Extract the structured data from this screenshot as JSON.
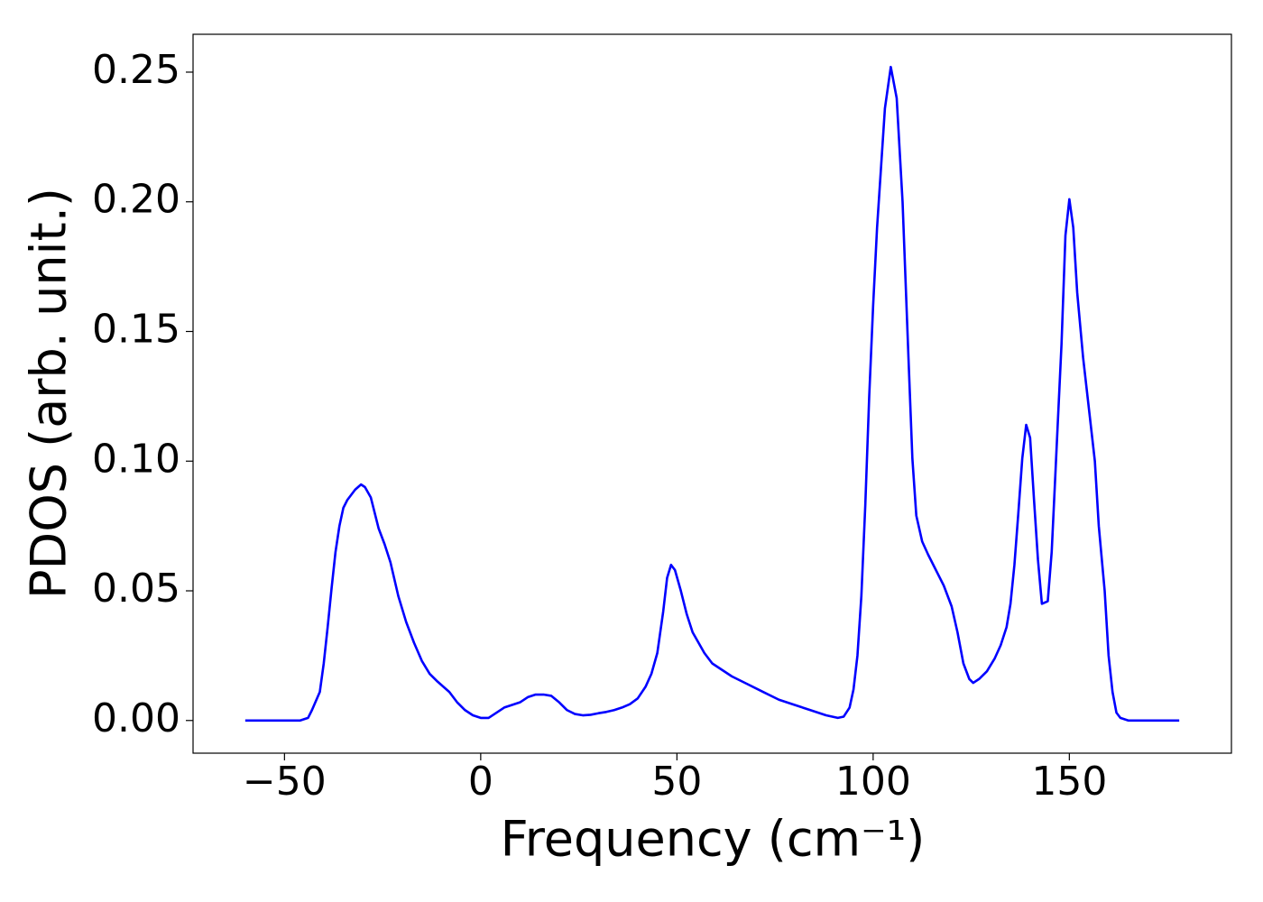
{
  "chart_data": {
    "type": "line",
    "xlabel": "Frequency (cm⁻¹)",
    "ylabel": "PDOS (arb. unit.)",
    "x": [
      -60,
      -46,
      -44,
      -43,
      -41,
      -40,
      -39,
      -38,
      -37,
      -36,
      -35,
      -34,
      -32,
      -30.5,
      -29.5,
      -28,
      -26,
      -24.5,
      -23,
      -21,
      -19,
      -17,
      -15,
      -13,
      -11,
      -8,
      -6,
      -4,
      -2,
      0,
      2,
      4,
      6,
      8,
      10,
      12,
      14,
      16,
      18,
      20,
      22,
      24,
      26,
      28,
      30,
      32,
      34,
      36,
      38,
      40,
      42,
      43.5,
      45,
      46.5,
      47.5,
      48.5,
      49.5,
      51,
      52.5,
      54,
      55.5,
      57,
      59,
      61,
      64,
      68,
      72,
      76,
      80,
      84,
      88,
      91,
      92.5,
      94,
      95,
      96,
      97,
      98,
      99,
      100,
      101,
      102,
      103,
      104.5,
      106,
      107.5,
      109,
      110,
      111,
      112.5,
      114,
      116,
      118,
      120,
      121.5,
      123,
      124.5,
      125.5,
      127,
      129,
      131,
      132.5,
      134,
      135,
      136,
      137,
      138,
      139,
      140,
      141,
      142,
      143,
      144.5,
      145.5,
      146.5,
      148,
      149,
      150,
      151,
      152,
      153.5,
      155,
      156.5,
      157.5,
      159,
      160,
      161,
      162,
      163,
      165,
      178
    ],
    "series": [
      {
        "color": "#0000ff",
        "values": [
          0,
          0,
          0.001,
          0.004,
          0.011,
          0.022,
          0.036,
          0.051,
          0.065,
          0.075,
          0.082,
          0.085,
          0.089,
          0.091,
          0.09,
          0.086,
          0.074,
          0.068,
          0.061,
          0.048,
          0.038,
          0.03,
          0.023,
          0.018,
          0.015,
          0.011,
          0.007,
          0.004,
          0.002,
          0.001,
          0.001,
          0.003,
          0.005,
          0.006,
          0.007,
          0.009,
          0.01,
          0.01,
          0.0095,
          0.007,
          0.004,
          0.0025,
          0.002,
          0.0022,
          0.0028,
          0.0033,
          0.004,
          0.005,
          0.0063,
          0.0085,
          0.013,
          0.018,
          0.026,
          0.042,
          0.055,
          0.06,
          0.058,
          0.05,
          0.041,
          0.034,
          0.03,
          0.026,
          0.022,
          0.02,
          0.017,
          0.014,
          0.011,
          0.008,
          0.006,
          0.004,
          0.002,
          0.001,
          0.0015,
          0.005,
          0.012,
          0.025,
          0.048,
          0.083,
          0.125,
          0.16,
          0.19,
          0.213,
          0.236,
          0.252,
          0.24,
          0.2,
          0.14,
          0.101,
          0.079,
          0.069,
          0.064,
          0.058,
          0.052,
          0.044,
          0.034,
          0.022,
          0.016,
          0.0145,
          0.016,
          0.019,
          0.024,
          0.029,
          0.036,
          0.045,
          0.06,
          0.08,
          0.101,
          0.114,
          0.109,
          0.085,
          0.062,
          0.045,
          0.046,
          0.065,
          0.097,
          0.145,
          0.187,
          0.201,
          0.19,
          0.165,
          0.14,
          0.12,
          0.1,
          0.075,
          0.05,
          0.025,
          0.011,
          0.003,
          0.001,
          0,
          0
        ]
      }
    ],
    "xlim": [
      -73.3,
      191.3
    ],
    "ylim": [
      -0.0126,
      0.2646
    ],
    "xticks": [
      {
        "value": -50,
        "label": "−50"
      },
      0,
      50,
      100,
      150
    ],
    "yticks": [
      {
        "value": 0,
        "label": "0.00"
      },
      {
        "value": 0.05,
        "label": "0.05"
      },
      {
        "value": 0.1,
        "label": "0.10"
      },
      {
        "value": 0.15,
        "label": "0.15"
      },
      {
        "value": 0.2,
        "label": "0.20"
      },
      {
        "value": 0.25,
        "label": "0.25"
      }
    ]
  }
}
